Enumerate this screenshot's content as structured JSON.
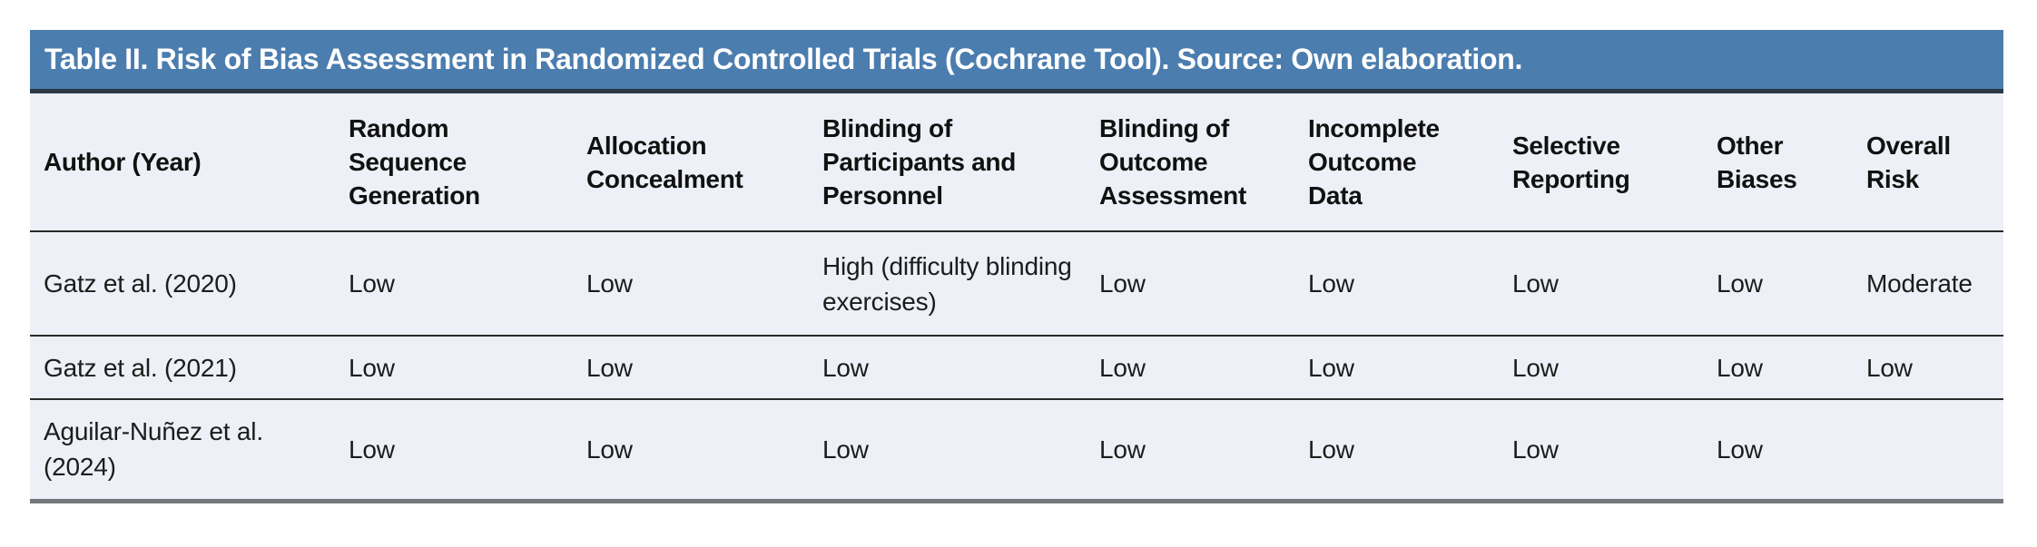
{
  "table": {
    "title": "Table II. Risk of Bias Assessment in Randomized Controlled Trials (Cochrane Tool). Source: Own elaboration.",
    "columns": [
      "Author (Year)",
      "Random Sequence Generation",
      "Allocation Concealment",
      "Blinding of Participants and Personnel",
      "Blinding of Outcome Assessment",
      "Incomplete Outcome Data",
      "Selective Reporting",
      "Other Biases",
      "Overall Risk"
    ],
    "rows": [
      [
        "Gatz et al. (2020)",
        "Low",
        "Low",
        "High (difficulty blinding exercises)",
        "Low",
        "Low",
        "Low",
        "Low",
        "Moderate"
      ],
      [
        "Gatz et al. (2021)",
        "Low",
        "Low",
        "Low",
        "Low",
        "Low",
        "Low",
        "Low",
        "Low"
      ],
      [
        "Aguilar-Nuñez et al. (2024)",
        "Low",
        "Low",
        "Low",
        "Low",
        "Low",
        "Low",
        "Low",
        ""
      ]
    ]
  },
  "colors": {
    "title_bar_background": "#4b7dae",
    "title_text": "#ffffff",
    "title_underline": "#2c3a47",
    "table_background": "#edf0f7",
    "row_separator": "#2a2a2a",
    "bottom_border": "#76777a",
    "body_text": "#1c1c1c"
  }
}
